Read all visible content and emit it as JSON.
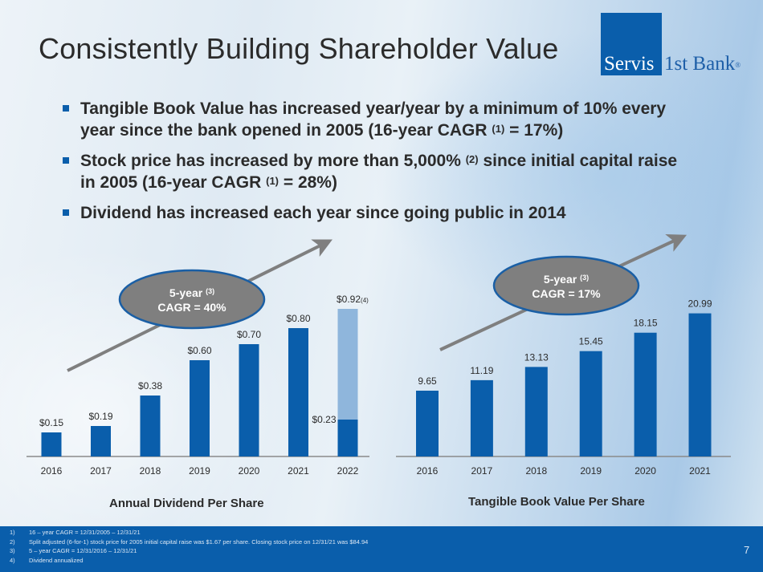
{
  "slide": {
    "title": "Consistently Building Shareholder Value",
    "page_number": "7"
  },
  "logo": {
    "part1": "Servis",
    "part2": "1st Bank",
    "registered": "®",
    "color": "#0a5eab"
  },
  "bullets": [
    {
      "text_before": "Tangible Book Value has increased year/year by a minimum of 10% every year since the bank opened in 2005 (16-year CAGR",
      "sup": "(1)",
      "text_after": " = 17%)"
    },
    {
      "text_before": "Stock price has increased by more than 5,000%",
      "sup": "(2)",
      "text_mid": " since initial capital raise in 2005 (16-year CAGR",
      "sup2": "(1)",
      "text_after": " = 28%)"
    },
    {
      "text_before": "Dividend has increased each year since going public in 2014"
    }
  ],
  "footnotes": [
    {
      "num": "1)",
      "text": "16 – year CAGR = 12/31/2005 – 12/31/21"
    },
    {
      "num": "2)",
      "text": "Split adjusted (6-for-1) stock price for 2005 initial capital raise was $1.67 per share.  Closing stock price on 12/31/21 was $84.94"
    },
    {
      "num": "3)",
      "text": "5 – year CAGR = 12/31/2016 – 12/31/21"
    },
    {
      "num": "4)",
      "text": "Dividend annualized"
    }
  ],
  "colors": {
    "bar": "#0a5eab",
    "bar_annualized": "#8fb6dc",
    "ellipse_fill": "#7f7f7f",
    "ellipse_stroke": "#1a5fa5",
    "arrow": "#7f7f7f",
    "axis": "#8a8a8a"
  },
  "chart_data": [
    {
      "type": "bar",
      "title": "Annual Dividend Per Share",
      "xlabel": "",
      "ylabel": "",
      "categories": [
        "2016",
        "2017",
        "2018",
        "2019",
        "2020",
        "2021",
        "2022"
      ],
      "values": [
        0.15,
        0.19,
        0.38,
        0.6,
        0.7,
        0.8,
        0.23
      ],
      "value_labels": [
        "$0.15",
        "$0.19",
        "$0.38",
        "$0.60",
        "$0.70",
        "$0.80",
        "$0.23"
      ],
      "stacked_annualized": {
        "category": "2022",
        "total": 0.92,
        "label": "$0.92",
        "label_sup": "(4)"
      },
      "ylim": [
        0,
        1.0
      ],
      "grid": false,
      "legend": "none",
      "annotation": {
        "line1": "5-year",
        "sup": "(3)",
        "line2": "CAGR = 40%",
        "trend_arrow": "up-right"
      }
    },
    {
      "type": "bar",
      "title": "Tangible Book Value Per Share",
      "xlabel": "",
      "ylabel": "",
      "categories": [
        "2016",
        "2017",
        "2018",
        "2019",
        "2020",
        "2021"
      ],
      "values": [
        9.65,
        11.19,
        13.13,
        15.45,
        18.15,
        20.99
      ],
      "value_labels": [
        "9.65",
        "11.19",
        "13.13",
        "15.45",
        "18.15",
        "20.99"
      ],
      "ylim": [
        0,
        24
      ],
      "grid": false,
      "legend": "none",
      "annotation": {
        "line1": "5-year",
        "sup": "(3)",
        "line2": "CAGR = 17%",
        "trend_arrow": "up-right"
      }
    }
  ]
}
